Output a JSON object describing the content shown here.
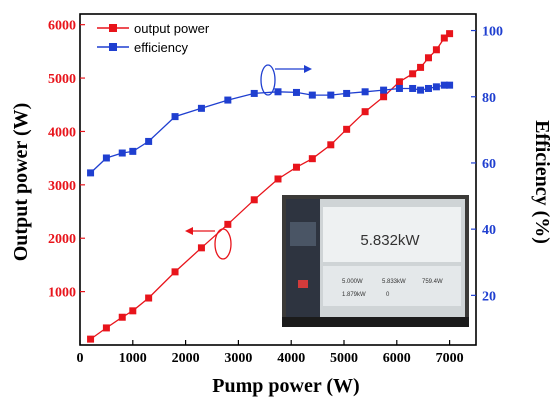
{
  "chart_data": {
    "type": "line",
    "title": "",
    "xlabel": "Pump power (W)",
    "ylabel_left": "Output power (W)",
    "ylabel_right": "Efficiency (%)",
    "xlim": [
      0,
      7500
    ],
    "ylim_left": [
      0,
      6200
    ],
    "ylim_right": [
      5,
      105
    ],
    "x_ticks": [
      0,
      1000,
      2000,
      3000,
      4000,
      5000,
      6000,
      7000
    ],
    "y_left_ticks": [
      1000,
      2000,
      3000,
      4000,
      5000,
      6000
    ],
    "y_right_ticks": [
      20,
      40,
      60,
      80,
      100
    ],
    "legend_position": "top-left",
    "series": [
      {
        "name": "output power",
        "axis": "left",
        "color": "#e8141b",
        "marker": "square",
        "x": [
          200,
          500,
          800,
          1000,
          1300,
          1800,
          2300,
          2800,
          3300,
          3750,
          4100,
          4400,
          4750,
          5050,
          5400,
          5750,
          6050,
          6300,
          6450,
          6600,
          6750,
          6900,
          7000
        ],
        "y": [
          110,
          320,
          520,
          640,
          880,
          1370,
          1820,
          2260,
          2720,
          3110,
          3330,
          3490,
          3750,
          4040,
          4370,
          4650,
          4930,
          5080,
          5200,
          5380,
          5530,
          5750,
          5832
        ]
      },
      {
        "name": "efficiency",
        "axis": "right",
        "color": "#1f3fd0",
        "marker": "square",
        "x": [
          200,
          500,
          800,
          1000,
          1300,
          1800,
          2300,
          2800,
          3300,
          3750,
          4100,
          4400,
          4750,
          5050,
          5400,
          5750,
          6050,
          6300,
          6450,
          6600,
          6750,
          6900,
          7000
        ],
        "y": [
          57,
          61.5,
          63,
          63.5,
          66.5,
          74,
          76.5,
          79,
          81,
          81.5,
          81.3,
          80.5,
          80.5,
          81,
          81.5,
          82,
          82.5,
          82.5,
          82,
          82.5,
          83,
          83.5,
          83.5
        ]
      }
    ],
    "annotations": {
      "inset_display_value": "5.832kW",
      "inset_small_values": [
        "5.000W",
        "5.833kW",
        "759.4W",
        "1.879kW",
        "0"
      ]
    }
  }
}
